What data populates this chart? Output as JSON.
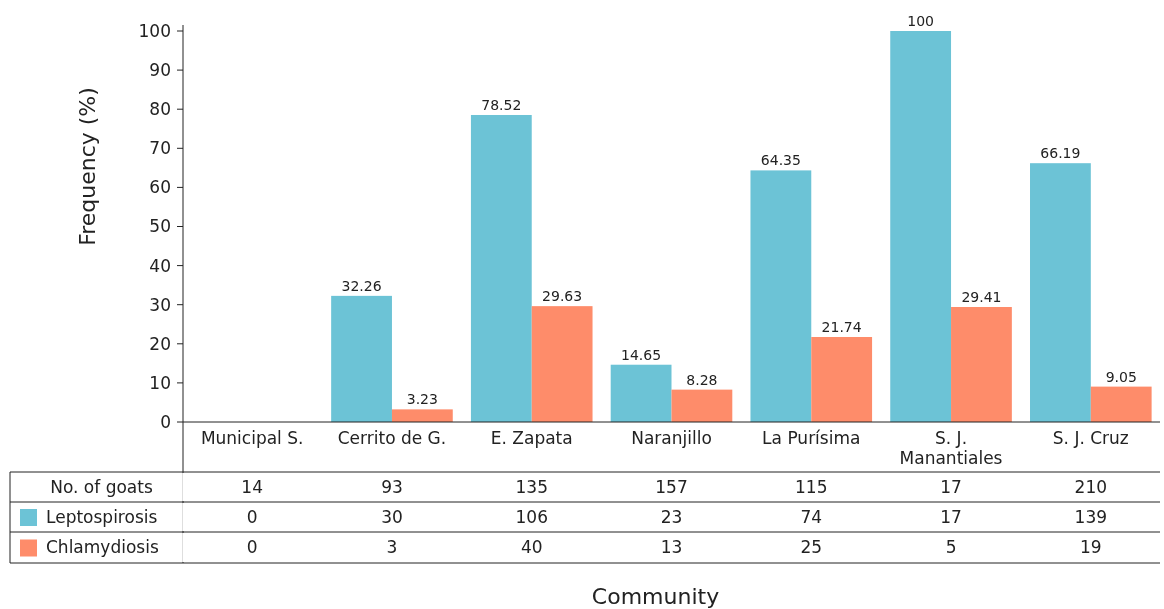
{
  "chart_data": [
    {
      "type": "bar",
      "xlabel": "Community",
      "ylabel": "Frequency (%)",
      "categories": [
        "Municipal S.",
        "Cerrito de G.",
        "E. Zapata",
        "Naranjillo",
        "La Purísima",
        "S. J. Manantiales",
        "S. J. Cruz"
      ],
      "series": [
        {
          "color": "#6cc3d6",
          "values": [
            0,
            32.26,
            78.52,
            14.65,
            64.35,
            100,
            66.19
          ],
          "value_labels": [
            null,
            "32.26",
            "78.52",
            "14.65",
            "64.35",
            "100",
            "66.19"
          ]
        },
        {
          "color": "#fe8c6a",
          "values": [
            0,
            3.23,
            29.63,
            8.28,
            21.74,
            29.41,
            9.05
          ],
          "value_labels": [
            null,
            "3.23",
            "29.63",
            "8.28",
            "21.74",
            "29.41",
            "9.05"
          ]
        }
      ],
      "ylim": [
        0,
        100
      ],
      "yticks": [
        0,
        10,
        20,
        30,
        40,
        50,
        60,
        70,
        80,
        90,
        100
      ]
    },
    {
      "type": "heatmap",
      "categories": [
        null,
        null,
        null,
        null,
        null,
        null,
        null
      ],
      "y_categories": [
        "No. of goats",
        "Leptospirosis",
        "Chlamydiosis"
      ],
      "data_labels": true,
      "cells": [
        [
          14,
          93,
          135,
          157,
          115,
          17,
          210
        ],
        [
          0,
          30,
          106,
          23,
          74,
          17,
          139
        ],
        [
          0,
          3,
          40,
          13,
          25,
          5,
          19
        ]
      ]
    }
  ]
}
